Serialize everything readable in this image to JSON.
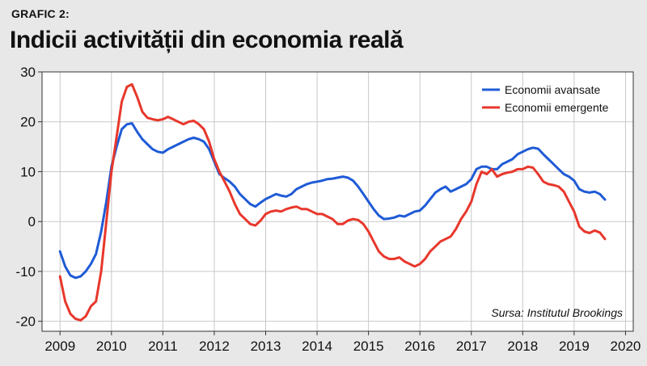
{
  "header": {
    "kicker": "GRAFIC 2:",
    "title": "Indicii activității din economia reală"
  },
  "chart_data": {
    "type": "line",
    "title": "Indicii activității din economia reală",
    "source": "Sursa: Institutul Brookings",
    "xlabel": "",
    "ylabel": "",
    "xlim": [
      2008.65,
      2020.15
    ],
    "ylim": [
      -22,
      30
    ],
    "x_ticks": [
      2009,
      2010,
      2011,
      2012,
      2013,
      2014,
      2015,
      2016,
      2017,
      2018,
      2019,
      2020
    ],
    "y_ticks": [
      -20,
      -10,
      0,
      10,
      20,
      30
    ],
    "grid": true,
    "legend_position": "top-right",
    "series": [
      {
        "name": "Economii avansate",
        "color": "#1f5bd6",
        "points": [
          [
            2009.0,
            -6
          ],
          [
            2009.1,
            -9
          ],
          [
            2009.2,
            -10.8
          ],
          [
            2009.3,
            -11.3
          ],
          [
            2009.4,
            -11
          ],
          [
            2009.5,
            -10
          ],
          [
            2009.6,
            -8.5
          ],
          [
            2009.7,
            -6.5
          ],
          [
            2009.8,
            -2
          ],
          [
            2009.9,
            4
          ],
          [
            2010.0,
            11
          ],
          [
            2010.1,
            15
          ],
          [
            2010.2,
            18.5
          ],
          [
            2010.3,
            19.5
          ],
          [
            2010.4,
            19.7
          ],
          [
            2010.5,
            18
          ],
          [
            2010.6,
            16.5
          ],
          [
            2010.7,
            15.5
          ],
          [
            2010.8,
            14.5
          ],
          [
            2010.9,
            14
          ],
          [
            2011.0,
            13.8
          ],
          [
            2011.1,
            14.5
          ],
          [
            2011.2,
            15
          ],
          [
            2011.3,
            15.5
          ],
          [
            2011.4,
            16
          ],
          [
            2011.5,
            16.5
          ],
          [
            2011.6,
            16.8
          ],
          [
            2011.7,
            16.5
          ],
          [
            2011.8,
            16
          ],
          [
            2011.9,
            14.5
          ],
          [
            2012.0,
            12
          ],
          [
            2012.1,
            9.5
          ],
          [
            2012.2,
            8.7
          ],
          [
            2012.3,
            8
          ],
          [
            2012.4,
            7
          ],
          [
            2012.5,
            5.5
          ],
          [
            2012.6,
            4.5
          ],
          [
            2012.7,
            3.5
          ],
          [
            2012.8,
            3
          ],
          [
            2012.9,
            3.8
          ],
          [
            2013.0,
            4.5
          ],
          [
            2013.1,
            5
          ],
          [
            2013.2,
            5.5
          ],
          [
            2013.3,
            5.2
          ],
          [
            2013.4,
            5
          ],
          [
            2013.5,
            5.5
          ],
          [
            2013.6,
            6.5
          ],
          [
            2013.7,
            7
          ],
          [
            2013.8,
            7.5
          ],
          [
            2013.9,
            7.8
          ],
          [
            2014.0,
            8
          ],
          [
            2014.1,
            8.2
          ],
          [
            2014.2,
            8.5
          ],
          [
            2014.3,
            8.6
          ],
          [
            2014.4,
            8.8
          ],
          [
            2014.5,
            9
          ],
          [
            2014.6,
            8.8
          ],
          [
            2014.7,
            8.2
          ],
          [
            2014.8,
            7
          ],
          [
            2014.9,
            5.5
          ],
          [
            2015.0,
            4
          ],
          [
            2015.1,
            2.5
          ],
          [
            2015.2,
            1.2
          ],
          [
            2015.3,
            0.5
          ],
          [
            2015.4,
            0.6
          ],
          [
            2015.5,
            0.8
          ],
          [
            2015.6,
            1.2
          ],
          [
            2015.7,
            1
          ],
          [
            2015.8,
            1.5
          ],
          [
            2015.9,
            2
          ],
          [
            2016.0,
            2.2
          ],
          [
            2016.1,
            3.2
          ],
          [
            2016.2,
            4.5
          ],
          [
            2016.3,
            5.8
          ],
          [
            2016.4,
            6.5
          ],
          [
            2016.5,
            7
          ],
          [
            2016.6,
            6
          ],
          [
            2016.7,
            6.5
          ],
          [
            2016.8,
            7
          ],
          [
            2016.9,
            7.5
          ],
          [
            2017.0,
            8.5
          ],
          [
            2017.1,
            10.5
          ],
          [
            2017.2,
            11
          ],
          [
            2017.3,
            11
          ],
          [
            2017.4,
            10.5
          ],
          [
            2017.5,
            10.5
          ],
          [
            2017.6,
            11.5
          ],
          [
            2017.7,
            12
          ],
          [
            2017.8,
            12.5
          ],
          [
            2017.9,
            13.5
          ],
          [
            2018.0,
            14
          ],
          [
            2018.1,
            14.5
          ],
          [
            2018.2,
            14.8
          ],
          [
            2018.3,
            14.6
          ],
          [
            2018.4,
            13.5
          ],
          [
            2018.5,
            12.5
          ],
          [
            2018.6,
            11.5
          ],
          [
            2018.7,
            10.5
          ],
          [
            2018.8,
            9.5
          ],
          [
            2018.9,
            9
          ],
          [
            2019.0,
            8.2
          ],
          [
            2019.1,
            6.5
          ],
          [
            2019.2,
            6
          ],
          [
            2019.3,
            5.8
          ],
          [
            2019.4,
            6
          ],
          [
            2019.5,
            5.5
          ],
          [
            2019.6,
            4.4
          ]
        ]
      },
      {
        "name": "Economii emergente",
        "color": "#e8372c",
        "points": [
          [
            2009.0,
            -11
          ],
          [
            2009.1,
            -16
          ],
          [
            2009.2,
            -18.5
          ],
          [
            2009.3,
            -19.5
          ],
          [
            2009.4,
            -19.8
          ],
          [
            2009.5,
            -19
          ],
          [
            2009.6,
            -17
          ],
          [
            2009.7,
            -16
          ],
          [
            2009.8,
            -10
          ],
          [
            2009.9,
            0
          ],
          [
            2010.0,
            10
          ],
          [
            2010.1,
            17
          ],
          [
            2010.2,
            24
          ],
          [
            2010.3,
            27
          ],
          [
            2010.4,
            27.5
          ],
          [
            2010.5,
            25
          ],
          [
            2010.6,
            22
          ],
          [
            2010.7,
            20.8
          ],
          [
            2010.8,
            20.5
          ],
          [
            2010.9,
            20.3
          ],
          [
            2011.0,
            20.5
          ],
          [
            2011.1,
            21
          ],
          [
            2011.2,
            20.5
          ],
          [
            2011.3,
            20
          ],
          [
            2011.4,
            19.5
          ],
          [
            2011.5,
            20
          ],
          [
            2011.6,
            20.2
          ],
          [
            2011.7,
            19.5
          ],
          [
            2011.8,
            18.5
          ],
          [
            2011.9,
            16
          ],
          [
            2012.0,
            12.5
          ],
          [
            2012.1,
            10
          ],
          [
            2012.2,
            8
          ],
          [
            2012.3,
            6
          ],
          [
            2012.4,
            3.5
          ],
          [
            2012.5,
            1.5
          ],
          [
            2012.6,
            0.5
          ],
          [
            2012.7,
            -0.5
          ],
          [
            2012.8,
            -0.8
          ],
          [
            2012.9,
            0.2
          ],
          [
            2013.0,
            1.5
          ],
          [
            2013.1,
            2
          ],
          [
            2013.2,
            2.2
          ],
          [
            2013.3,
            2
          ],
          [
            2013.4,
            2.5
          ],
          [
            2013.5,
            2.8
          ],
          [
            2013.6,
            3
          ],
          [
            2013.7,
            2.5
          ],
          [
            2013.8,
            2.5
          ],
          [
            2013.9,
            2
          ],
          [
            2014.0,
            1.5
          ],
          [
            2014.1,
            1.5
          ],
          [
            2014.2,
            1
          ],
          [
            2014.3,
            0.5
          ],
          [
            2014.4,
            -0.5
          ],
          [
            2014.5,
            -0.5
          ],
          [
            2014.6,
            0.2
          ],
          [
            2014.7,
            0.5
          ],
          [
            2014.8,
            0.3
          ],
          [
            2014.9,
            -0.5
          ],
          [
            2015.0,
            -2
          ],
          [
            2015.1,
            -4
          ],
          [
            2015.2,
            -6
          ],
          [
            2015.3,
            -7
          ],
          [
            2015.4,
            -7.5
          ],
          [
            2015.5,
            -7.5
          ],
          [
            2015.6,
            -7.2
          ],
          [
            2015.7,
            -8
          ],
          [
            2015.8,
            -8.5
          ],
          [
            2015.9,
            -9
          ],
          [
            2016.0,
            -8.5
          ],
          [
            2016.1,
            -7.5
          ],
          [
            2016.2,
            -6
          ],
          [
            2016.3,
            -5
          ],
          [
            2016.4,
            -4
          ],
          [
            2016.5,
            -3.5
          ],
          [
            2016.6,
            -3
          ],
          [
            2016.7,
            -1.5
          ],
          [
            2016.8,
            0.5
          ],
          [
            2016.9,
            2
          ],
          [
            2017.0,
            4
          ],
          [
            2017.1,
            7.5
          ],
          [
            2017.2,
            10
          ],
          [
            2017.3,
            9.5
          ],
          [
            2017.4,
            10.5
          ],
          [
            2017.5,
            9
          ],
          [
            2017.6,
            9.5
          ],
          [
            2017.7,
            9.8
          ],
          [
            2017.8,
            10
          ],
          [
            2017.9,
            10.5
          ],
          [
            2018.0,
            10.5
          ],
          [
            2018.1,
            11
          ],
          [
            2018.2,
            10.8
          ],
          [
            2018.3,
            9.5
          ],
          [
            2018.4,
            8
          ],
          [
            2018.5,
            7.5
          ],
          [
            2018.6,
            7.3
          ],
          [
            2018.7,
            7
          ],
          [
            2018.8,
            6
          ],
          [
            2018.9,
            4
          ],
          [
            2019.0,
            2
          ],
          [
            2019.1,
            -1
          ],
          [
            2019.2,
            -2
          ],
          [
            2019.3,
            -2.3
          ],
          [
            2019.4,
            -1.8
          ],
          [
            2019.5,
            -2.2
          ],
          [
            2019.6,
            -3.5
          ]
        ]
      }
    ]
  }
}
